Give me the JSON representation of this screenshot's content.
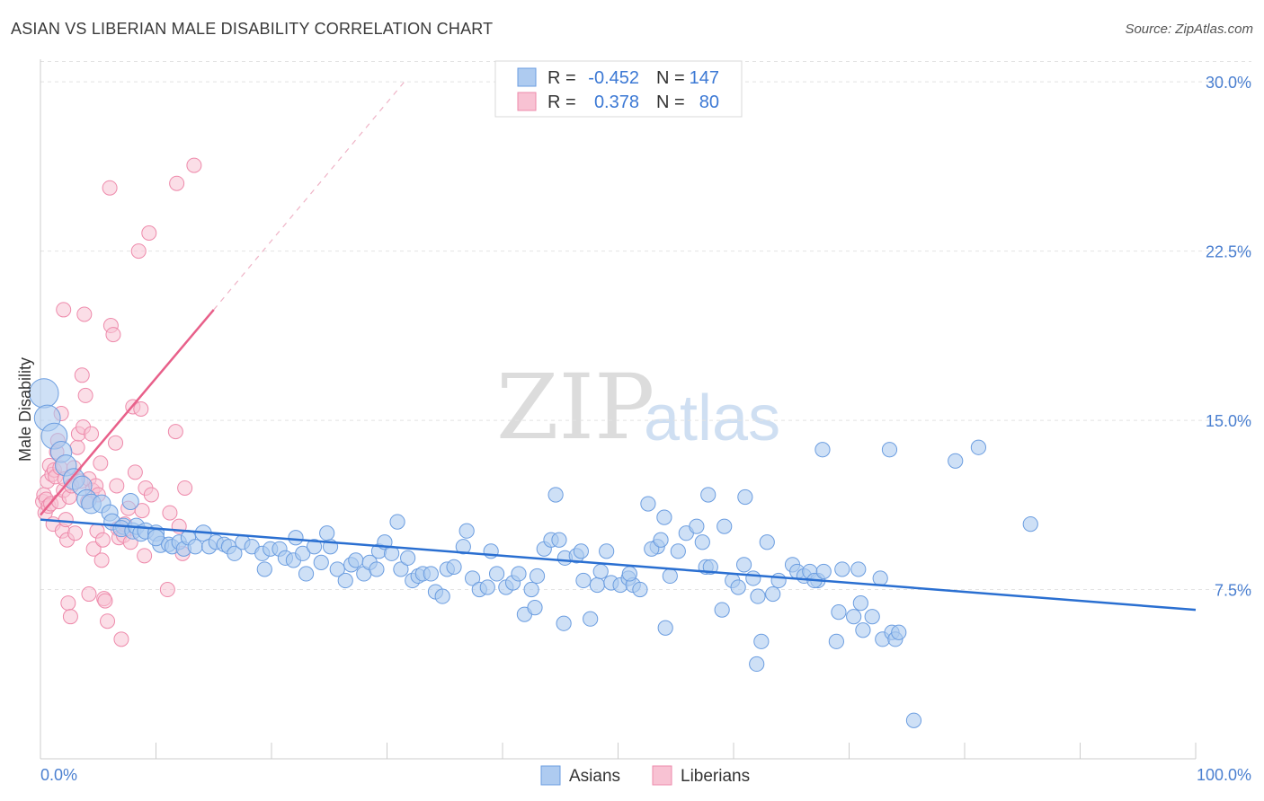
{
  "header": {
    "title": "ASIAN VS LIBERIAN MALE DISABILITY CORRELATION CHART",
    "source": "Source: ZipAtlas.com"
  },
  "watermark": {
    "zip": "ZIP",
    "atlas": "atlas"
  },
  "legend_top": {
    "r_label": "R =",
    "n_label": "N =",
    "rows": [
      {
        "series": "Asians",
        "r": "-0.452",
        "n": "147"
      },
      {
        "series": "Liberians",
        "r": "0.378",
        "n": "80"
      }
    ]
  },
  "legend_bottom": [
    "Asians",
    "Liberians"
  ],
  "colors": {
    "asians_fill": "#aecbf0",
    "asians_stroke": "#6b9de0",
    "asians_line": "#2a6fd1",
    "liberians_fill": "#f8c2d3",
    "liberians_stroke": "#ee8aab",
    "liberians_line": "#e8608a",
    "grid": "#e3e3e3",
    "tick_label": "#4a7fd0"
  },
  "chart_data": {
    "type": "scatter",
    "title": "ASIAN VS LIBERIAN MALE DISABILITY CORRELATION CHART",
    "xlabel": "",
    "ylabel": "Male Disability",
    "xlim": [
      0,
      100
    ],
    "ylim": [
      0,
      31
    ],
    "x_tick_labels": [
      "0.0%",
      "100.0%"
    ],
    "y_ticks": [
      7.5,
      15.0,
      22.5,
      30.0
    ],
    "y_tick_labels": [
      "7.5%",
      "15.0%",
      "22.5%",
      "30.0%"
    ],
    "grid": "horizontal dashed",
    "legend_position": "top-center",
    "series": [
      {
        "name": "Asians",
        "r": -0.452,
        "n": 147,
        "trend": {
          "x": [
            0,
            100
          ],
          "y": [
            10.6,
            6.6
          ]
        },
        "points": [
          [
            0.3,
            16.2,
            1.8
          ],
          [
            0.6,
            15.1,
            1.6
          ],
          [
            1.2,
            14.3,
            1.6
          ],
          [
            1.8,
            13.6,
            1.3
          ],
          [
            2.2,
            13.0,
            1.3
          ],
          [
            2.9,
            12.4,
            1.3
          ],
          [
            3.6,
            12.1,
            1.2
          ],
          [
            4.0,
            11.5,
            1.2
          ],
          [
            4.4,
            11.3,
            1.2
          ],
          [
            5.3,
            11.3,
            1.1
          ],
          [
            6.0,
            10.9,
            1.0
          ],
          [
            6.2,
            10.5,
            1.0
          ],
          [
            7.2,
            10.3,
            1.0
          ],
          [
            7.0,
            10.2,
            1.0
          ],
          [
            8.0,
            10.1,
            1.0
          ],
          [
            8.3,
            10.3,
            1.0
          ],
          [
            7.8,
            11.4,
            1.0
          ],
          [
            8.7,
            10.0,
            1.0
          ],
          [
            9.1,
            10.1,
            1.0
          ],
          [
            10.0,
            10.0,
            1.0
          ],
          [
            10.4,
            9.5,
            1.0
          ],
          [
            10.0,
            9.8,
            1.0
          ],
          [
            11.1,
            9.5,
            0.9
          ],
          [
            11.4,
            9.4,
            0.9
          ],
          [
            12.0,
            9.6,
            0.9
          ],
          [
            12.4,
            9.3,
            0.9
          ],
          [
            12.8,
            9.8,
            0.9
          ],
          [
            13.4,
            9.4,
            0.9
          ],
          [
            14.1,
            10.0,
            1.0
          ],
          [
            14.6,
            9.4,
            0.9
          ],
          [
            15.2,
            9.6,
            0.9
          ],
          [
            15.9,
            9.5,
            0.9
          ],
          [
            16.3,
            9.4,
            0.9
          ],
          [
            16.8,
            9.1,
            0.9
          ],
          [
            17.5,
            9.6,
            0.9
          ],
          [
            18.3,
            9.4,
            0.9
          ],
          [
            19.2,
            9.1,
            0.9
          ],
          [
            19.4,
            8.4,
            0.9
          ],
          [
            19.9,
            9.3,
            0.9
          ],
          [
            20.7,
            9.3,
            0.9
          ],
          [
            21.2,
            8.9,
            0.9
          ],
          [
            21.9,
            8.8,
            0.9
          ],
          [
            22.1,
            9.8,
            0.9
          ],
          [
            22.7,
            9.1,
            0.9
          ],
          [
            23.0,
            8.2,
            0.9
          ],
          [
            23.7,
            9.4,
            0.9
          ],
          [
            24.3,
            8.7,
            0.9
          ],
          [
            25.1,
            9.4,
            0.9
          ],
          [
            24.8,
            10.0,
            0.9
          ],
          [
            25.7,
            8.4,
            0.9
          ],
          [
            26.4,
            7.9,
            0.9
          ],
          [
            26.9,
            8.6,
            0.9
          ],
          [
            27.3,
            8.8,
            0.9
          ],
          [
            28.0,
            8.2,
            0.9
          ],
          [
            28.5,
            8.7,
            0.9
          ],
          [
            29.1,
            8.4,
            0.9
          ],
          [
            29.3,
            9.2,
            0.9
          ],
          [
            29.8,
            9.6,
            0.9
          ],
          [
            30.4,
            9.1,
            0.9
          ],
          [
            31.2,
            8.4,
            0.9
          ],
          [
            31.8,
            8.9,
            0.9
          ],
          [
            30.9,
            10.5,
            0.9
          ],
          [
            32.2,
            7.9,
            0.9
          ],
          [
            32.7,
            8.1,
            0.9
          ],
          [
            33.1,
            8.2,
            0.9
          ],
          [
            33.8,
            8.2,
            0.9
          ],
          [
            34.2,
            7.4,
            0.9
          ],
          [
            34.8,
            7.2,
            0.9
          ],
          [
            35.2,
            8.4,
            0.9
          ],
          [
            35.8,
            8.5,
            0.9
          ],
          [
            36.6,
            9.4,
            0.9
          ],
          [
            36.9,
            10.1,
            0.9
          ],
          [
            37.4,
            8.0,
            0.9
          ],
          [
            38.0,
            7.5,
            0.9
          ],
          [
            38.7,
            7.6,
            0.9
          ],
          [
            39.0,
            9.2,
            0.9
          ],
          [
            39.5,
            8.2,
            0.9
          ],
          [
            40.3,
            7.6,
            0.9
          ],
          [
            40.9,
            7.8,
            0.9
          ],
          [
            41.4,
            8.2,
            0.9
          ],
          [
            41.9,
            6.4,
            0.9
          ],
          [
            42.5,
            7.5,
            0.9
          ],
          [
            42.8,
            6.7,
            0.9
          ],
          [
            43.0,
            8.1,
            0.9
          ],
          [
            43.6,
            9.3,
            0.9
          ],
          [
            44.2,
            9.7,
            0.9
          ],
          [
            44.9,
            9.7,
            0.9
          ],
          [
            45.4,
            8.9,
            0.9
          ],
          [
            44.6,
            11.7,
            0.9
          ],
          [
            45.3,
            6.0,
            0.9
          ],
          [
            46.4,
            9.0,
            0.9
          ],
          [
            46.8,
            9.2,
            0.9
          ],
          [
            47.0,
            7.9,
            0.9
          ],
          [
            47.6,
            6.2,
            0.9
          ],
          [
            48.2,
            7.7,
            0.9
          ],
          [
            48.5,
            8.3,
            0.9
          ],
          [
            49.0,
            9.2,
            0.9
          ],
          [
            49.4,
            7.8,
            0.9
          ],
          [
            50.2,
            7.7,
            0.9
          ],
          [
            50.9,
            8.0,
            0.9
          ],
          [
            51.3,
            7.7,
            0.9
          ],
          [
            51.0,
            8.2,
            0.9
          ],
          [
            51.9,
            7.5,
            0.9
          ],
          [
            52.6,
            11.3,
            0.9
          ],
          [
            53.4,
            9.4,
            0.9
          ],
          [
            52.9,
            9.3,
            0.9
          ],
          [
            53.7,
            9.7,
            0.9
          ],
          [
            54.0,
            10.7,
            0.9
          ],
          [
            54.5,
            8.1,
            0.9
          ],
          [
            54.1,
            5.8,
            0.9
          ],
          [
            55.2,
            9.2,
            0.9
          ],
          [
            55.9,
            10.0,
            0.9
          ],
          [
            56.8,
            10.3,
            0.9
          ],
          [
            57.3,
            9.6,
            0.9
          ],
          [
            57.6,
            8.5,
            0.9
          ],
          [
            58.0,
            8.5,
            0.9
          ],
          [
            57.8,
            11.7,
            0.9
          ],
          [
            59.0,
            6.6,
            0.9
          ],
          [
            59.2,
            10.3,
            0.9
          ],
          [
            59.9,
            7.9,
            0.9
          ],
          [
            60.4,
            7.6,
            0.9
          ],
          [
            60.9,
            8.6,
            0.9
          ],
          [
            61.0,
            11.6,
            0.9
          ],
          [
            61.7,
            8.0,
            0.9
          ],
          [
            62.1,
            7.2,
            0.9
          ],
          [
            62.4,
            5.2,
            0.9
          ],
          [
            62.9,
            9.6,
            0.9
          ],
          [
            63.4,
            7.3,
            0.9
          ],
          [
            63.9,
            7.9,
            0.9
          ],
          [
            65.1,
            8.6,
            0.9
          ],
          [
            65.5,
            8.3,
            0.9
          ],
          [
            66.1,
            8.1,
            0.9
          ],
          [
            66.6,
            8.3,
            0.9
          ],
          [
            67.3,
            7.9,
            0.9
          ],
          [
            67.0,
            7.9,
            0.9
          ],
          [
            67.8,
            8.3,
            0.9
          ],
          [
            67.7,
            13.7,
            0.9
          ],
          [
            69.4,
            8.4,
            0.9
          ],
          [
            70.4,
            6.3,
            0.9
          ],
          [
            71.0,
            6.9,
            0.9
          ],
          [
            71.2,
            5.7,
            0.9
          ],
          [
            70.8,
            8.4,
            0.9
          ],
          [
            72.7,
            8.0,
            0.9
          ],
          [
            73.5,
            13.7,
            0.9
          ],
          [
            72.9,
            5.3,
            0.9
          ],
          [
            73.7,
            5.6,
            0.9
          ],
          [
            74.0,
            5.3,
            0.9
          ],
          [
            74.3,
            5.6,
            0.9
          ],
          [
            75.6,
            1.7,
            0.9
          ],
          [
            79.2,
            13.2,
            0.9
          ],
          [
            81.2,
            13.8,
            0.9
          ],
          [
            85.7,
            10.4,
            0.9
          ],
          [
            62.0,
            4.2,
            0.9
          ],
          [
            68.9,
            5.2,
            0.9
          ],
          [
            69.1,
            6.5,
            0.9
          ],
          [
            72.0,
            6.3,
            0.9
          ]
        ]
      },
      {
        "name": "Liberians",
        "r": 0.378,
        "n": 80,
        "trend": {
          "x": [
            0,
            15
          ],
          "y": [
            10.8,
            19.9
          ]
        },
        "trend_dashed": {
          "x": [
            15,
            31.5
          ],
          "y": [
            19.9,
            30.0
          ]
        },
        "points": [
          [
            0.2,
            11.4
          ],
          [
            0.3,
            11.7
          ],
          [
            0.4,
            10.9
          ],
          [
            0.5,
            11.5
          ],
          [
            0.6,
            12.3
          ],
          [
            0.7,
            11.2
          ],
          [
            0.8,
            13.0
          ],
          [
            0.9,
            11.3
          ],
          [
            1.0,
            12.6
          ],
          [
            1.1,
            10.4
          ],
          [
            1.2,
            12.8
          ],
          [
            1.3,
            12.5
          ],
          [
            1.4,
            13.6
          ],
          [
            1.5,
            14.1
          ],
          [
            1.6,
            11.4
          ],
          [
            1.7,
            12.9
          ],
          [
            1.8,
            15.3
          ],
          [
            1.9,
            10.1
          ],
          [
            2.0,
            11.9
          ],
          [
            2.1,
            12.4
          ],
          [
            2.2,
            10.6
          ],
          [
            2.3,
            9.7
          ],
          [
            2.5,
            11.6
          ],
          [
            2.7,
            12.1
          ],
          [
            2.9,
            12.9
          ],
          [
            3.0,
            10.0
          ],
          [
            3.2,
            13.8
          ],
          [
            3.3,
            14.4
          ],
          [
            3.5,
            12.3
          ],
          [
            3.6,
            17.0
          ],
          [
            3.7,
            14.7
          ],
          [
            3.8,
            19.7
          ],
          [
            3.9,
            16.1
          ],
          [
            4.1,
            11.4
          ],
          [
            4.2,
            12.4
          ],
          [
            4.4,
            14.4
          ],
          [
            4.5,
            11.9
          ],
          [
            4.6,
            9.3
          ],
          [
            4.8,
            12.1
          ],
          [
            4.9,
            10.1
          ],
          [
            5.0,
            11.7
          ],
          [
            5.2,
            13.1
          ],
          [
            5.3,
            8.8
          ],
          [
            5.4,
            9.7
          ],
          [
            5.5,
            7.1
          ],
          [
            5.6,
            7.0
          ],
          [
            5.8,
            6.1
          ],
          [
            6.0,
            25.3
          ],
          [
            6.1,
            19.2
          ],
          [
            6.3,
            18.8
          ],
          [
            6.5,
            14.0
          ],
          [
            6.6,
            12.1
          ],
          [
            6.7,
            10.2
          ],
          [
            6.8,
            9.8
          ],
          [
            7.0,
            5.3
          ],
          [
            7.2,
            9.9
          ],
          [
            7.3,
            10.4
          ],
          [
            7.6,
            11.1
          ],
          [
            7.8,
            9.6
          ],
          [
            8.0,
            15.6
          ],
          [
            8.2,
            12.7
          ],
          [
            8.5,
            22.5
          ],
          [
            8.7,
            15.5
          ],
          [
            8.8,
            11.0
          ],
          [
            9.0,
            9.0
          ],
          [
            9.1,
            12.0
          ],
          [
            9.4,
            23.3
          ],
          [
            9.6,
            11.7
          ],
          [
            11.0,
            7.5
          ],
          [
            11.2,
            10.9
          ],
          [
            11.7,
            14.5
          ],
          [
            11.8,
            25.5
          ],
          [
            12.0,
            10.3
          ],
          [
            12.3,
            9.1
          ],
          [
            12.5,
            12.0
          ],
          [
            13.3,
            26.3
          ],
          [
            2.0,
            19.9
          ],
          [
            2.4,
            6.9
          ],
          [
            2.6,
            6.3
          ],
          [
            4.2,
            7.3
          ]
        ]
      }
    ]
  }
}
